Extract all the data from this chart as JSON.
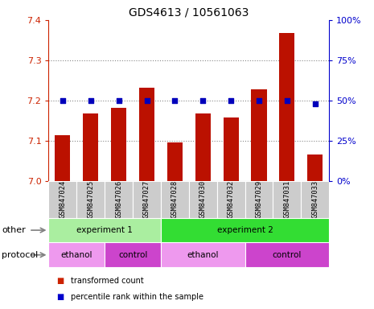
{
  "title": "GDS4613 / 10561063",
  "samples": [
    "GSM847024",
    "GSM847025",
    "GSM847026",
    "GSM847027",
    "GSM847028",
    "GSM847030",
    "GSM847032",
    "GSM847029",
    "GSM847031",
    "GSM847033"
  ],
  "bar_values": [
    7.113,
    7.168,
    7.182,
    7.232,
    7.095,
    7.168,
    7.157,
    7.228,
    7.368,
    7.065
  ],
  "dot_percentile": [
    50,
    50,
    50,
    50,
    50,
    50,
    50,
    50,
    50,
    48
  ],
  "ylim_left": [
    7.0,
    7.4
  ],
  "ylim_right": [
    0,
    100
  ],
  "yticks_left": [
    7.0,
    7.1,
    7.2,
    7.3,
    7.4
  ],
  "yticks_right": [
    0,
    25,
    50,
    75,
    100
  ],
  "ytick_labels_right": [
    "0%",
    "25%",
    "50%",
    "75%",
    "100%"
  ],
  "bar_color": "#bb1100",
  "dot_color": "#0000bb",
  "left_tick_color": "#cc2200",
  "right_tick_color": "#0000cc",
  "grid_color": "#888888",
  "other_row": {
    "label": "other",
    "groups": [
      {
        "text": "experiment 1",
        "start": 0,
        "end": 4,
        "color": "#aaeea0"
      },
      {
        "text": "experiment 2",
        "start": 4,
        "end": 10,
        "color": "#33dd33"
      }
    ]
  },
  "protocol_row": {
    "label": "protocol",
    "groups": [
      {
        "text": "ethanol",
        "start": 0,
        "end": 2,
        "color": "#ee99ee"
      },
      {
        "text": "control",
        "start": 2,
        "end": 4,
        "color": "#cc44cc"
      },
      {
        "text": "ethanol",
        "start": 4,
        "end": 7,
        "color": "#ee99ee"
      },
      {
        "text": "control",
        "start": 7,
        "end": 10,
        "color": "#cc44cc"
      }
    ]
  },
  "legend_items": [
    {
      "label": "transformed count",
      "color": "#cc2200"
    },
    {
      "label": "percentile rank within the sample",
      "color": "#0000cc"
    }
  ],
  "sample_box_color": "#cccccc",
  "n_samples": 10
}
